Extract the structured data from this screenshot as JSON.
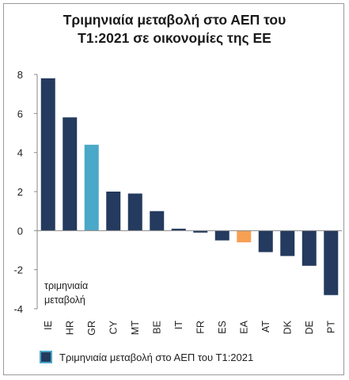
{
  "chart_data": {
    "type": "bar",
    "title_line1": "Τριμηνιαία μεταβολή στο ΑΕΠ του",
    "title_line2": "Τ1:2021 σε οικονομίες της ΕΕ",
    "ylabel_line1": "τριμηνιαία",
    "ylabel_line2": "μεταβολή",
    "ylim": [
      -4,
      8
    ],
    "yticks": [
      -4,
      -2,
      0,
      2,
      4,
      6,
      8
    ],
    "categories": [
      "IE",
      "HR",
      "GR",
      "CY",
      "MT",
      "BE",
      "IT",
      "FR",
      "ES",
      "EA",
      "AT",
      "DK",
      "DE",
      "PT"
    ],
    "values": [
      7.8,
      5.8,
      4.4,
      2.0,
      1.9,
      1.0,
      0.1,
      -0.1,
      -0.5,
      -0.6,
      -1.1,
      -1.3,
      -1.8,
      -3.3
    ],
    "series": [
      {
        "name": "Τριμηνιαία μεταβολή στο ΑΕΠ του Τ1:2021"
      }
    ],
    "legend": "bottom",
    "grid": false,
    "colors": {
      "default": "#243a5e",
      "highlight_gr": "#4aa8c8",
      "highlight_ea": "#f7a054"
    },
    "bar_colors": [
      "#243a5e",
      "#243a5e",
      "#4aa8c8",
      "#243a5e",
      "#243a5e",
      "#243a5e",
      "#243a5e",
      "#243a5e",
      "#243a5e",
      "#f7a054",
      "#243a5e",
      "#243a5e",
      "#243a5e",
      "#243a5e"
    ]
  }
}
